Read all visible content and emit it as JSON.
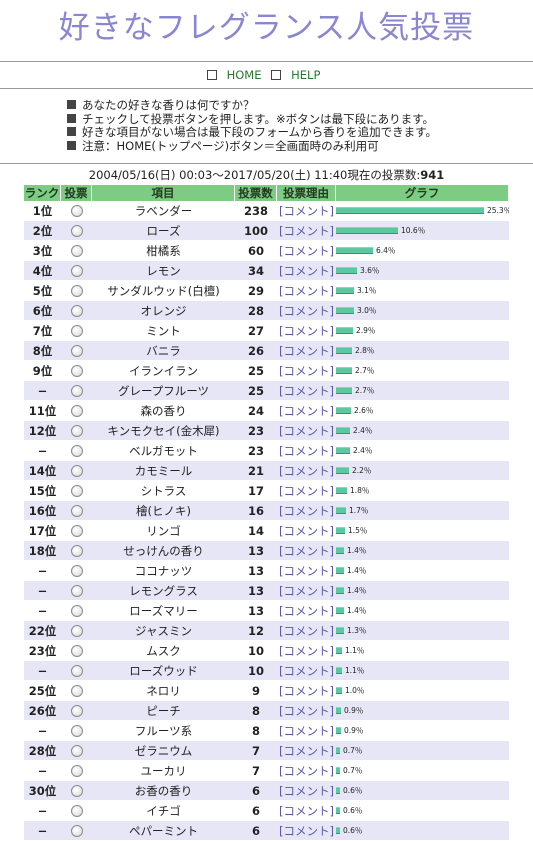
{
  "header": {
    "title": "好きなフレグランス人気投票"
  },
  "nav": {
    "home_label": "HOME",
    "help_label": "HELP"
  },
  "notes": [
    "あなたの好きな香りは何ですか？",
    "チェックして投票ボタンを押します。※ボタンは最下段にあります。",
    "好きな項目がない場合は最下段のフォームから香りを追加できます。",
    "注意：HOME(トップページ)ボタン＝全画面時のみ利用可"
  ],
  "period": {
    "text": "2004/05/16(日) 00:03〜2017/05/20(土) 11:40現在の投票数:",
    "total": "941"
  },
  "table": {
    "headers": [
      "ランク",
      "投票",
      "項目",
      "投票数",
      "投票理由",
      "グラフ"
    ],
    "comment_label": "[コメント]",
    "rows": [
      {
        "rank": "1位",
        "item": "ラベンダー",
        "count": "238",
        "pct": "25.3％",
        "share": 25.3
      },
      {
        "rank": "2位",
        "item": "ローズ",
        "count": "100",
        "pct": "10.6％",
        "share": 10.6
      },
      {
        "rank": "3位",
        "item": "柑橘系",
        "count": "60",
        "pct": "6.4％",
        "share": 6.4
      },
      {
        "rank": "4位",
        "item": "レモン",
        "count": "34",
        "pct": "3.6％",
        "share": 3.6
      },
      {
        "rank": "5位",
        "item": "サンダルウッド(白檀)",
        "count": "29",
        "pct": "3.1％",
        "share": 3.1
      },
      {
        "rank": "6位",
        "item": "オレンジ",
        "count": "28",
        "pct": "3.0％",
        "share": 3.0
      },
      {
        "rank": "7位",
        "item": "ミント",
        "count": "27",
        "pct": "2.9％",
        "share": 2.9
      },
      {
        "rank": "8位",
        "item": "バニラ",
        "count": "26",
        "pct": "2.8％",
        "share": 2.8
      },
      {
        "rank": "9位",
        "item": "イランイラン",
        "count": "25",
        "pct": "2.7％",
        "share": 2.7
      },
      {
        "rank": "−",
        "item": "グレープフルーツ",
        "count": "25",
        "pct": "2.7％",
        "share": 2.7
      },
      {
        "rank": "11位",
        "item": "森の香り",
        "count": "24",
        "pct": "2.6％",
        "share": 2.6
      },
      {
        "rank": "12位",
        "item": "キンモクセイ(金木犀)",
        "count": "23",
        "pct": "2.4％",
        "share": 2.4
      },
      {
        "rank": "−",
        "item": "ベルガモット",
        "count": "23",
        "pct": "2.4％",
        "share": 2.4
      },
      {
        "rank": "14位",
        "item": "カモミール",
        "count": "21",
        "pct": "2.2％",
        "share": 2.2
      },
      {
        "rank": "15位",
        "item": "シトラス",
        "count": "17",
        "pct": "1.8％",
        "share": 1.8
      },
      {
        "rank": "16位",
        "item": "檜(ヒノキ)",
        "count": "16",
        "pct": "1.7％",
        "share": 1.7
      },
      {
        "rank": "17位",
        "item": "リンゴ",
        "count": "14",
        "pct": "1.5％",
        "share": 1.5
      },
      {
        "rank": "18位",
        "item": "せっけんの香り",
        "count": "13",
        "pct": "1.4％",
        "share": 1.4
      },
      {
        "rank": "−",
        "item": "ココナッツ",
        "count": "13",
        "pct": "1.4％",
        "share": 1.4
      },
      {
        "rank": "−",
        "item": "レモングラス",
        "count": "13",
        "pct": "1.4％",
        "share": 1.4
      },
      {
        "rank": "−",
        "item": "ローズマリー",
        "count": "13",
        "pct": "1.4％",
        "share": 1.4
      },
      {
        "rank": "22位",
        "item": "ジャスミン",
        "count": "12",
        "pct": "1.3％",
        "share": 1.3
      },
      {
        "rank": "23位",
        "item": "ムスク",
        "count": "10",
        "pct": "1.1％",
        "share": 1.1
      },
      {
        "rank": "−",
        "item": "ローズウッド",
        "count": "10",
        "pct": "1.1％",
        "share": 1.1
      },
      {
        "rank": "25位",
        "item": "ネロリ",
        "count": "9",
        "pct": "1.0％",
        "share": 1.0
      },
      {
        "rank": "26位",
        "item": "ピーチ",
        "count": "8",
        "pct": "0.9％",
        "share": 0.9
      },
      {
        "rank": "−",
        "item": "フルーツ系",
        "count": "8",
        "pct": "0.9％",
        "share": 0.9
      },
      {
        "rank": "28位",
        "item": "ゼラニウム",
        "count": "7",
        "pct": "0.7％",
        "share": 0.7
      },
      {
        "rank": "−",
        "item": "ユーカリ",
        "count": "7",
        "pct": "0.7％",
        "share": 0.7
      },
      {
        "rank": "30位",
        "item": "お香の香り",
        "count": "6",
        "pct": "0.6％",
        "share": 0.6
      },
      {
        "rank": "−",
        "item": "イチゴ",
        "count": "6",
        "pct": "0.6％",
        "share": 0.6
      },
      {
        "rank": "−",
        "item": "ペパーミント",
        "count": "6",
        "pct": "0.6％",
        "share": 0.6
      }
    ]
  },
  "colors": {
    "title": "#8a86d2",
    "header_bg": "#7ecb83",
    "row_alt": "#e6e6f6",
    "bar": "#5ac9a0",
    "link": "#2b7a2b"
  }
}
